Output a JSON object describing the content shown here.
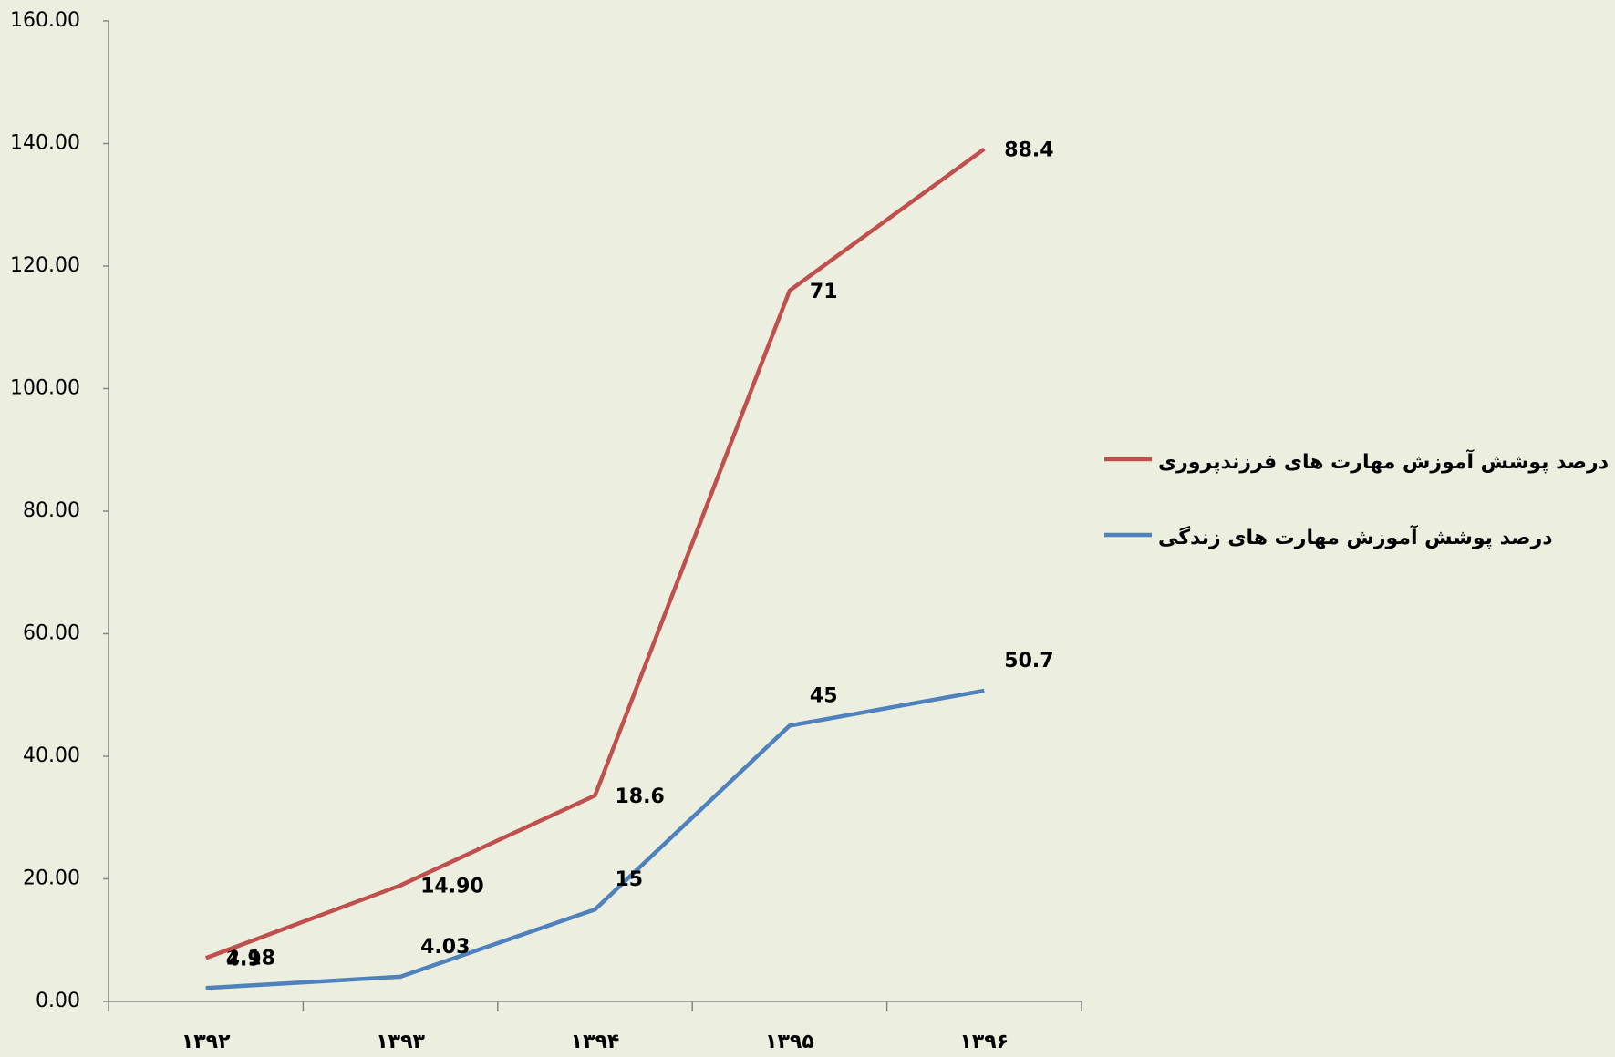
{
  "chart_data": {
    "type": "line",
    "stacked": true,
    "categories": [
      "۱۳۹۲",
      "۱۳۹۳",
      "۱۳۹۴",
      "۱۳۹۵",
      "۱۳۹۶"
    ],
    "series": [
      {
        "name": "درصد پوشش آموزش مهارت های زندگی",
        "color": "#4f81bd",
        "values": [
          2.18,
          4.03,
          15,
          45,
          50.7
        ]
      },
      {
        "name": "درصد پوشش آموزش مهارت های فرزندپروری",
        "color": "#c0504d",
        "values": [
          4.9,
          14.9,
          18.6,
          71,
          88.4
        ],
        "value_labels": [
          "4.9",
          "14.90",
          "18.6",
          "71",
          "88.4"
        ]
      }
    ],
    "ylim": [
      0,
      160
    ],
    "yticks": [
      {
        "value": 0,
        "label": "0.00"
      },
      {
        "value": 20,
        "label": "20.00"
      },
      {
        "value": 40,
        "label": "40.00"
      },
      {
        "value": 60,
        "label": "60.00"
      },
      {
        "value": 80,
        "label": "80.00"
      },
      {
        "value": 100,
        "label": "100.00"
      },
      {
        "value": 120,
        "label": "120.00"
      },
      {
        "value": 140,
        "label": "140.00"
      },
      {
        "value": 160,
        "label": "160.00"
      }
    ],
    "legend": "right"
  }
}
